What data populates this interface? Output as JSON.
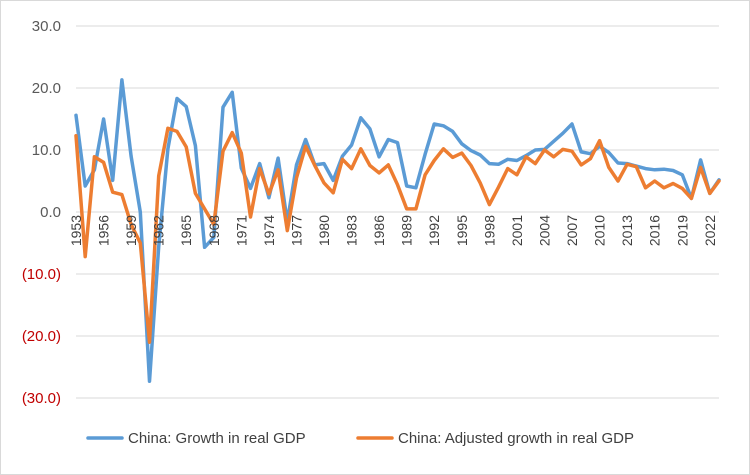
{
  "chart_data": {
    "type": "line",
    "title": "",
    "xlabel": "",
    "ylabel": "",
    "ylim": [
      -30,
      30
    ],
    "y_ticks": [
      {
        "value": 30,
        "label": "30.0"
      },
      {
        "value": 20,
        "label": "20.0"
      },
      {
        "value": 10,
        "label": "10.0"
      },
      {
        "value": 0,
        "label": "0.0"
      },
      {
        "value": -10,
        "label": "(10.0)"
      },
      {
        "value": -20,
        "label": "(20.0)"
      },
      {
        "value": -30,
        "label": "(30.0)"
      }
    ],
    "negative_label_color": "#c00000",
    "positive_label_color": "#595959",
    "x": [
      1953,
      1954,
      1955,
      1956,
      1957,
      1958,
      1959,
      1960,
      1961,
      1962,
      1963,
      1964,
      1965,
      1966,
      1967,
      1968,
      1969,
      1970,
      1971,
      1972,
      1973,
      1974,
      1975,
      1976,
      1977,
      1978,
      1979,
      1980,
      1981,
      1982,
      1983,
      1984,
      1985,
      1986,
      1987,
      1988,
      1989,
      1990,
      1991,
      1992,
      1993,
      1994,
      1995,
      1996,
      1997,
      1998,
      1999,
      2000,
      2001,
      2002,
      2003,
      2004,
      2005,
      2006,
      2007,
      2008,
      2009,
      2010,
      2011,
      2012,
      2013,
      2014,
      2015,
      2016,
      2017,
      2018,
      2019,
      2020,
      2021,
      2022,
      2023
    ],
    "x_tick_labels": [
      "1953",
      "1956",
      "1959",
      "1962",
      "1965",
      "1968",
      "1971",
      "1974",
      "1977",
      "1980",
      "1983",
      "1986",
      "1989",
      "1992",
      "1995",
      "1998",
      "2001",
      "2004",
      "2007",
      "2010",
      "2013",
      "2016",
      "2019",
      "2022"
    ],
    "series": [
      {
        "name": "China: Growth in real GDP",
        "color": "#5b9bd5",
        "values": [
          15.6,
          4.2,
          6.8,
          15.0,
          5.1,
          21.3,
          9.0,
          0.0,
          -27.3,
          -5.6,
          10.2,
          18.3,
          17.0,
          10.7,
          -5.7,
          -4.1,
          16.9,
          19.3,
          7.1,
          3.8,
          7.8,
          2.3,
          8.7,
          -1.6,
          7.6,
          11.7,
          7.6,
          7.8,
          5.1,
          9.0,
          10.8,
          15.2,
          13.4,
          8.9,
          11.7,
          11.2,
          4.2,
          3.9,
          9.3,
          14.2,
          13.9,
          13.0,
          11.0,
          9.9,
          9.2,
          7.8,
          7.7,
          8.5,
          8.3,
          9.1,
          10.0,
          10.1,
          11.4,
          12.7,
          14.2,
          9.7,
          9.4,
          10.6,
          9.6,
          7.9,
          7.8,
          7.4,
          7.0,
          6.8,
          6.9,
          6.7,
          6.0,
          2.2,
          8.4,
          3.0,
          5.2
        ]
      },
      {
        "name": "China: Adjusted growth in real GDP",
        "color": "#ed7d31",
        "values": [
          12.3,
          -7.2,
          8.9,
          8.0,
          3.2,
          2.8,
          -2.0,
          -5.0,
          -21.0,
          5.8,
          13.5,
          13.0,
          10.5,
          3.0,
          0.5,
          -2.0,
          9.8,
          12.8,
          9.5,
          -0.8,
          7.0,
          2.9,
          6.8,
          -3.0,
          5.5,
          10.6,
          7.5,
          4.7,
          3.1,
          8.5,
          7.0,
          10.2,
          7.5,
          6.3,
          7.6,
          4.4,
          0.5,
          0.5,
          6.0,
          8.3,
          10.2,
          8.8,
          9.5,
          7.5,
          4.7,
          1.2,
          4.0,
          7.0,
          6.0,
          8.9,
          7.8,
          10.0,
          8.9,
          10.1,
          9.8,
          7.6,
          8.6,
          11.5,
          7.2,
          5.0,
          7.7,
          7.3,
          3.9,
          5.0,
          3.9,
          4.6,
          3.8,
          2.2,
          7.2,
          3.0,
          5.0
        ]
      }
    ],
    "grid": true,
    "legend_position": "bottom"
  }
}
